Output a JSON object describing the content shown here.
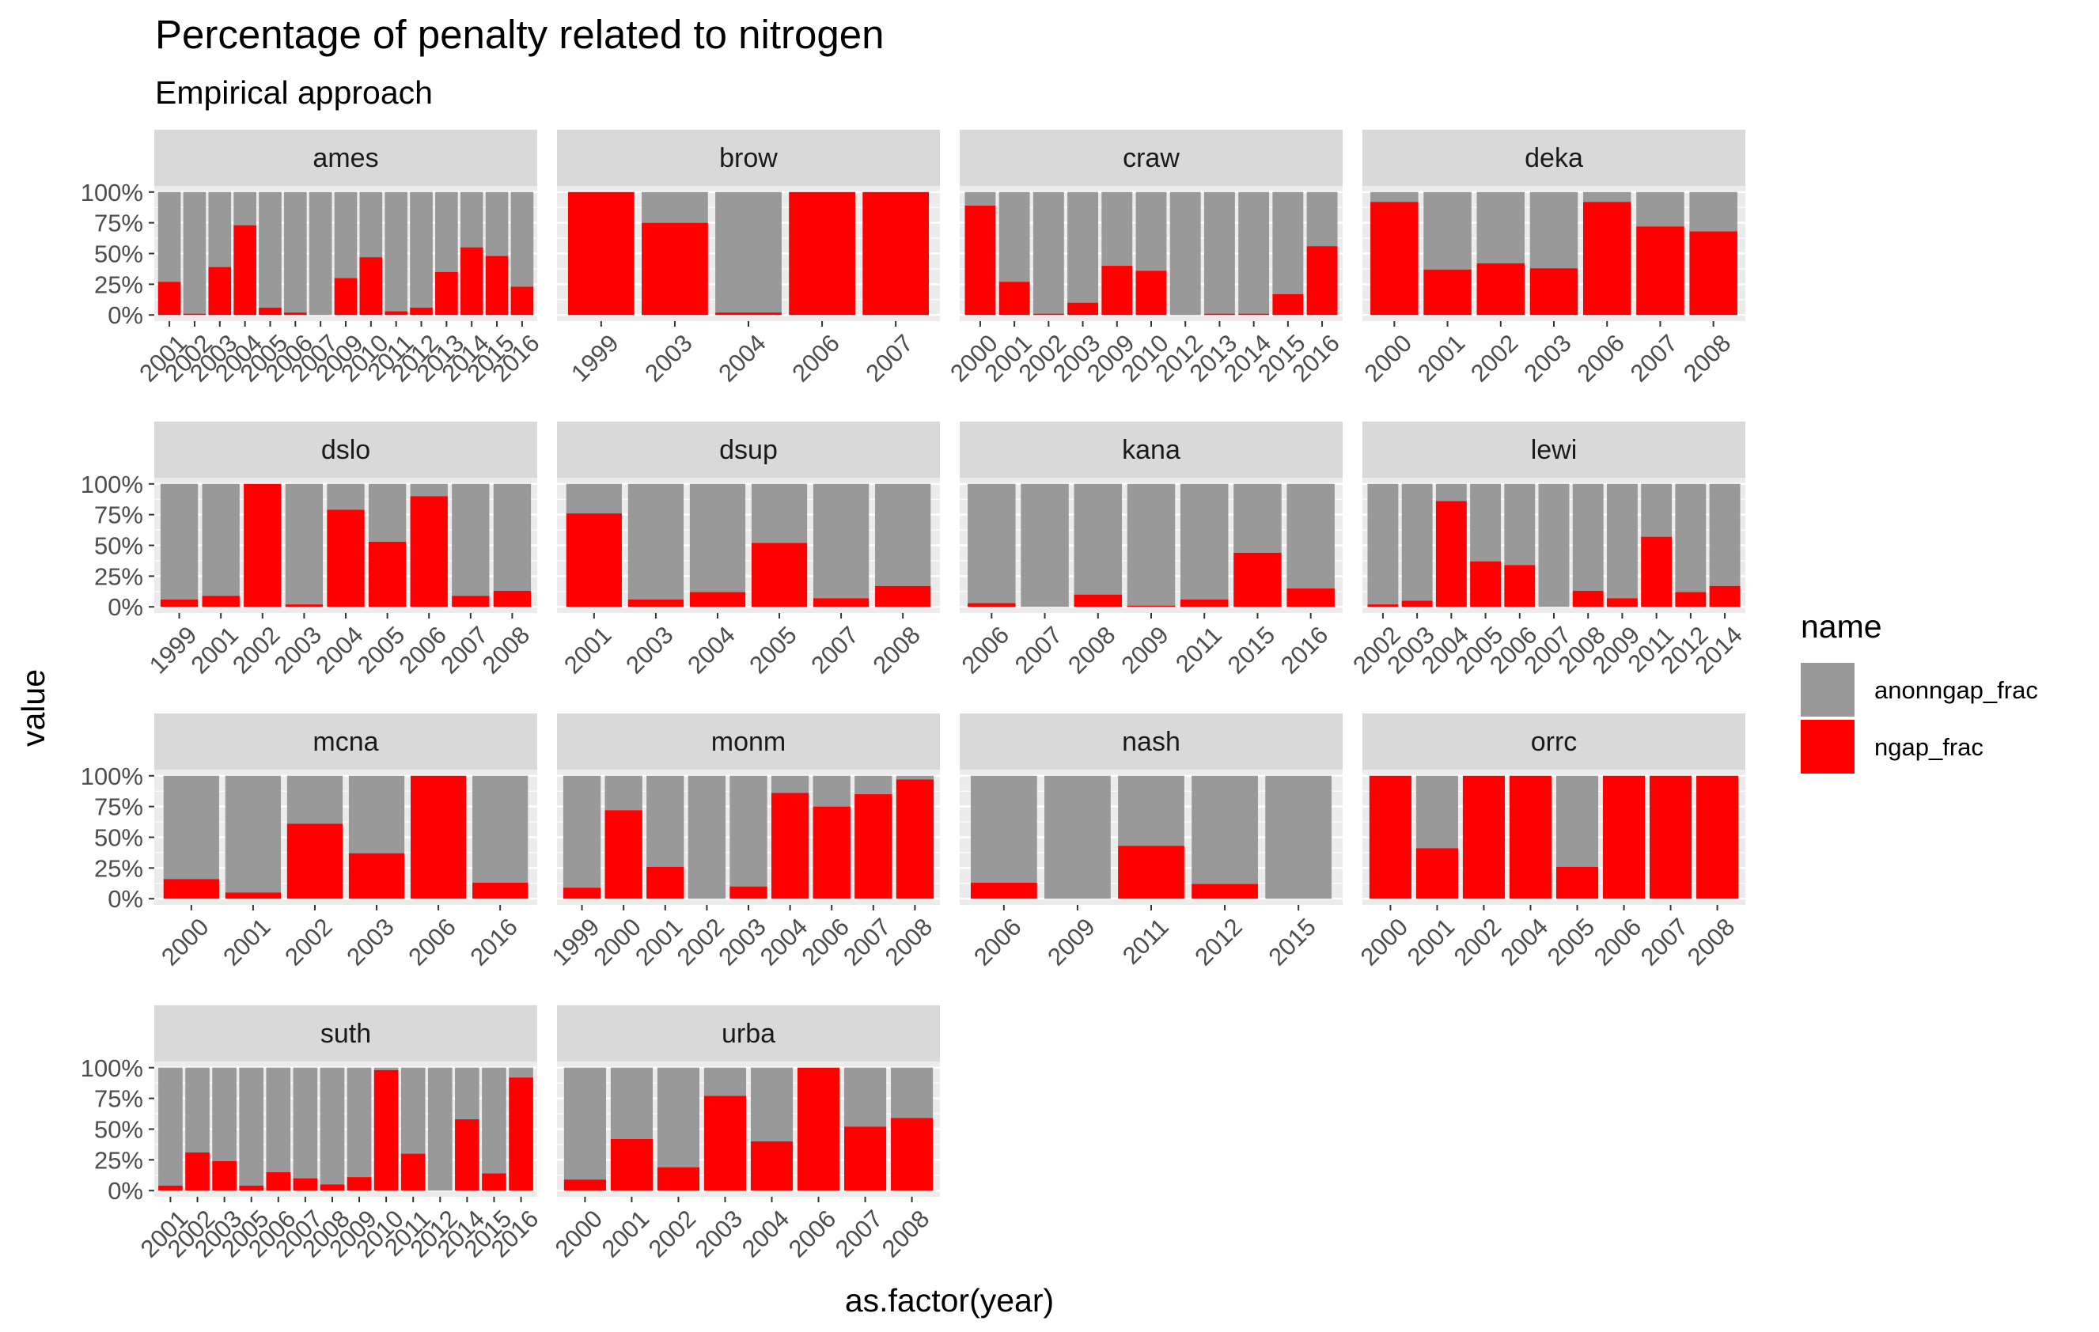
{
  "chart_data": {
    "type": "bar",
    "stacked": true,
    "title": "Percentage of penalty related to nitrogen",
    "subtitle": "Empirical approach",
    "xlabel": "as.factor(year)",
    "ylabel": "value",
    "ylim": [
      0,
      1
    ],
    "y_ticks": [
      "0%",
      "25%",
      "50%",
      "75%",
      "100%"
    ],
    "grid": true,
    "legend": {
      "title": "name",
      "position": "right",
      "entries": [
        {
          "name": "anonngap_frac",
          "color": "#999999"
        },
        {
          "name": "ngap_frac",
          "color": "#ff0000"
        }
      ]
    },
    "panels": [
      {
        "label": "ames",
        "categories": [
          "2001",
          "2002",
          "2003",
          "2004",
          "2005",
          "2006",
          "2007",
          "2009",
          "2010",
          "2011",
          "2012",
          "2013",
          "2014",
          "2015",
          "2016"
        ],
        "ngap_frac": [
          0.27,
          0.01,
          0.39,
          0.73,
          0.06,
          0.02,
          0.0,
          0.3,
          0.47,
          0.03,
          0.06,
          0.35,
          0.55,
          0.48,
          0.23
        ]
      },
      {
        "label": "brow",
        "categories": [
          "1999",
          "2003",
          "2004",
          "2006",
          "2007"
        ],
        "ngap_frac": [
          1.0,
          0.75,
          0.02,
          1.0,
          1.0
        ]
      },
      {
        "label": "craw",
        "categories": [
          "2000",
          "2001",
          "2002",
          "2003",
          "2009",
          "2010",
          "2012",
          "2013",
          "2014",
          "2015",
          "2016"
        ],
        "ngap_frac": [
          0.89,
          0.27,
          0.01,
          0.1,
          0.4,
          0.36,
          0.0,
          0.01,
          0.01,
          0.17,
          0.56
        ]
      },
      {
        "label": "deka",
        "categories": [
          "2000",
          "2001",
          "2002",
          "2003",
          "2006",
          "2007",
          "2008"
        ],
        "ngap_frac": [
          0.92,
          0.37,
          0.42,
          0.38,
          0.92,
          0.72,
          0.68
        ]
      },
      {
        "label": "dslo",
        "categories": [
          "1999",
          "2001",
          "2002",
          "2003",
          "2004",
          "2005",
          "2006",
          "2007",
          "2008"
        ],
        "ngap_frac": [
          0.06,
          0.09,
          1.0,
          0.02,
          0.79,
          0.53,
          0.9,
          0.09,
          0.13
        ]
      },
      {
        "label": "dsup",
        "categories": [
          "2001",
          "2003",
          "2004",
          "2005",
          "2007",
          "2008"
        ],
        "ngap_frac": [
          0.76,
          0.06,
          0.12,
          0.52,
          0.07,
          0.17
        ]
      },
      {
        "label": "kana",
        "categories": [
          "2006",
          "2007",
          "2008",
          "2009",
          "2011",
          "2015",
          "2016"
        ],
        "ngap_frac": [
          0.03,
          0.0,
          0.1,
          0.01,
          0.06,
          0.44,
          0.15
        ]
      },
      {
        "label": "lewi",
        "categories": [
          "2002",
          "2003",
          "2004",
          "2005",
          "2006",
          "2007",
          "2008",
          "2009",
          "2011",
          "2012",
          "2014"
        ],
        "ngap_frac": [
          0.02,
          0.05,
          0.86,
          0.37,
          0.34,
          0.0,
          0.13,
          0.07,
          0.57,
          0.12,
          0.17
        ]
      },
      {
        "label": "mcna",
        "categories": [
          "2000",
          "2001",
          "2002",
          "2003",
          "2006",
          "2016"
        ],
        "ngap_frac": [
          0.16,
          0.05,
          0.61,
          0.37,
          1.0,
          0.13
        ]
      },
      {
        "label": "monm",
        "categories": [
          "1999",
          "2000",
          "2001",
          "2002",
          "2003",
          "2004",
          "2006",
          "2007",
          "2008"
        ],
        "ngap_frac": [
          0.09,
          0.72,
          0.26,
          0.0,
          0.1,
          0.86,
          0.75,
          0.85,
          0.97
        ]
      },
      {
        "label": "nash",
        "categories": [
          "2006",
          "2009",
          "2011",
          "2012",
          "2015"
        ],
        "ngap_frac": [
          0.13,
          0.0,
          0.43,
          0.12,
          0.0
        ]
      },
      {
        "label": "orrc",
        "categories": [
          "2000",
          "2001",
          "2002",
          "2004",
          "2005",
          "2006",
          "2007",
          "2008"
        ],
        "ngap_frac": [
          1.0,
          0.41,
          1.0,
          1.0,
          0.26,
          1.0,
          1.0,
          1.0
        ]
      },
      {
        "label": "suth",
        "categories": [
          "2001",
          "2002",
          "2003",
          "2005",
          "2006",
          "2007",
          "2008",
          "2009",
          "2010",
          "2011",
          "2012",
          "2014",
          "2015",
          "2016"
        ],
        "ngap_frac": [
          0.04,
          0.31,
          0.24,
          0.04,
          0.15,
          0.1,
          0.05,
          0.11,
          0.98,
          0.3,
          0.0,
          0.58,
          0.14,
          0.92
        ]
      },
      {
        "label": "urba",
        "categories": [
          "2000",
          "2001",
          "2002",
          "2003",
          "2004",
          "2006",
          "2007",
          "2008"
        ],
        "ngap_frac": [
          0.09,
          0.42,
          0.19,
          0.77,
          0.4,
          1.0,
          0.52,
          0.59
        ]
      }
    ]
  }
}
